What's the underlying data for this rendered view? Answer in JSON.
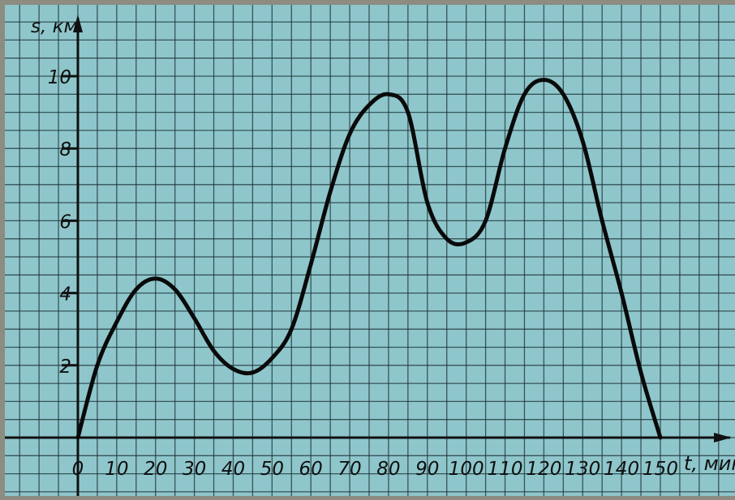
{
  "chart_data": {
    "type": "line",
    "title": "",
    "xlabel": "t, мин",
    "ylabel": "s, км",
    "xlim": [
      0,
      150
    ],
    "ylim": [
      0,
      10
    ],
    "x_ticks": [
      "0",
      "10",
      "20",
      "30",
      "40",
      "50",
      "60",
      "70",
      "80",
      "90",
      "100",
      "110",
      "120",
      "130",
      "140",
      "150"
    ],
    "y_ticks": [
      "2",
      "4",
      "6",
      "8",
      "10"
    ],
    "grid": true,
    "series": [
      {
        "x": [
          0,
          5,
          10,
          15,
          20,
          25,
          30,
          35,
          40,
          45,
          50,
          55,
          60,
          65,
          70,
          75,
          80,
          85,
          90,
          95,
          100,
          105,
          110,
          115,
          120,
          125,
          130,
          135,
          140,
          145,
          150
        ],
        "y": [
          0,
          2.0,
          3.2,
          4.1,
          4.4,
          4.1,
          3.3,
          2.4,
          1.9,
          1.8,
          2.2,
          3.0,
          4.8,
          6.8,
          8.4,
          9.2,
          9.5,
          9.0,
          6.5,
          5.5,
          5.4,
          6.0,
          8.0,
          9.5,
          9.9,
          9.5,
          8.2,
          6.0,
          4.0,
          1.8,
          0
        ]
      }
    ],
    "colors": {
      "paper": "#8ec6cb",
      "grid": "#1b2e32",
      "curve": "#0a0a0a",
      "frame": "#8c8c80"
    }
  }
}
